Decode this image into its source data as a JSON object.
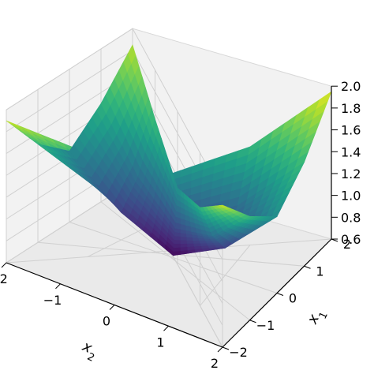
{
  "chart_data": {
    "type": "surface3d",
    "title": "",
    "colormap": "viridis",
    "pane_color": "#f2f2f2",
    "grid": true,
    "x_axis": {
      "label": "x",
      "label_sub": "2",
      "range": [
        -2,
        2
      ],
      "ticks": [
        -2,
        -1,
        0,
        1,
        2
      ],
      "tick_labels": [
        "−2",
        "−1",
        "0",
        "1",
        "2"
      ]
    },
    "y_axis": {
      "label": "x",
      "label_sub": "1",
      "range": [
        -2,
        2
      ],
      "ticks": [
        -2,
        -1,
        0,
        1,
        2
      ],
      "tick_labels": [
        "−2",
        "−1",
        "0",
        "1",
        "2"
      ]
    },
    "z_axis": {
      "range": [
        0.6,
        2.0
      ],
      "ticks": [
        0.6,
        0.8,
        1.0,
        1.2,
        1.4,
        1.6,
        1.8,
        2.0
      ],
      "tick_labels": [
        "0.6",
        "0.8",
        "1.0",
        "1.2",
        "1.4",
        "1.6",
        "1.8",
        "2.0"
      ]
    },
    "z_grid_samples": {
      "x2_values": [
        -2,
        -1,
        0,
        1,
        2
      ],
      "x1_values": [
        -2,
        -1,
        0,
        1,
        2
      ],
      "z": [
        [
          1.85,
          1.55,
          1.3,
          1.5,
          1.9
        ],
        [
          1.5,
          1.1,
          0.9,
          1.1,
          1.55
        ],
        [
          1.25,
          0.85,
          0.62,
          0.85,
          1.3
        ],
        [
          1.5,
          1.1,
          0.9,
          1.1,
          1.55
        ],
        [
          1.9,
          1.55,
          1.3,
          1.5,
          1.95
        ]
      ]
    }
  }
}
